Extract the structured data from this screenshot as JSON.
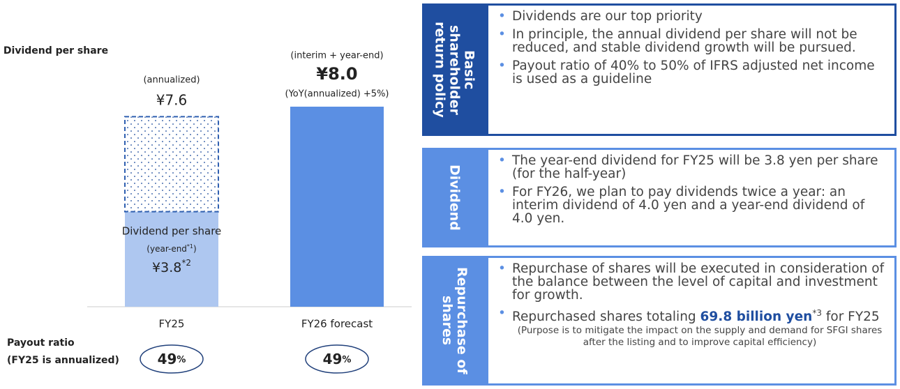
{
  "chart_data": {
    "type": "bar",
    "ylabel": "Dividend per share",
    "categories": [
      "FY25",
      "FY26 forecast"
    ],
    "ylim": [
      0,
      8
    ],
    "series": [
      {
        "values": [
          3.8,
          8.0
        ],
        "colors": [
          "#aec7f0",
          "#5b8fe3"
        ],
        "value_labels": [
          "¥3.8",
          "¥8.0"
        ]
      },
      {
        "values": [
          3.8,
          null
        ],
        "color": "#2f5fb0",
        "pattern": "dots"
      }
    ],
    "annotations": [
      "(annualized)",
      "¥7.6",
      "Dividend per share",
      "(year-end",
      "*1",
      ")",
      "*2",
      "(interim + year-end)",
      "(YoY(annualized) +5%)"
    ],
    "payout_ratio": {
      "title": "Payout ratio",
      "subtitle": "(FY25 is annualized)",
      "values": [
        49,
        49
      ],
      "unit": "%"
    }
  },
  "panels": [
    {
      "heading": [
        "Basic",
        "shareholder",
        "return policy"
      ],
      "color": "#1f4ea0",
      "bullets": [
        {
          "text": "Dividends are our top priority"
        },
        {
          "text": "In principle, the annual dividend per share will not be reduced, and stable dividend growth will be pursued."
        },
        {
          "text": "Payout ratio of 40% to 50% of IFRS adjusted net income is used as a guideline"
        }
      ]
    },
    {
      "heading": [
        "Dividend"
      ],
      "color": "#5b8fe3",
      "bullets": [
        {
          "text": "The year-end dividend for FY25 will be 3.8 yen per share (for the half-year)"
        },
        {
          "text": "For FY26, we plan to pay dividends twice a year: an interim dividend of 4.0 yen and a year-end dividend of 4.0 yen."
        }
      ]
    },
    {
      "heading": [
        "Repurchase of",
        "shares"
      ],
      "color": "#5b8fe3",
      "bullets": [
        {
          "text": "Repurchase of shares will be executed in consideration of the balance between the level of capital and investment for growth."
        },
        {
          "text": "Repurchased shares totaling ",
          "bold": "69.8 billion yen",
          "sup": "*3",
          "after": " for FY25",
          "note": "(Purpose is to mitigate the impact on the supply and demand for SFGI shares after the listing and to improve capital efficiency)"
        }
      ]
    }
  ]
}
